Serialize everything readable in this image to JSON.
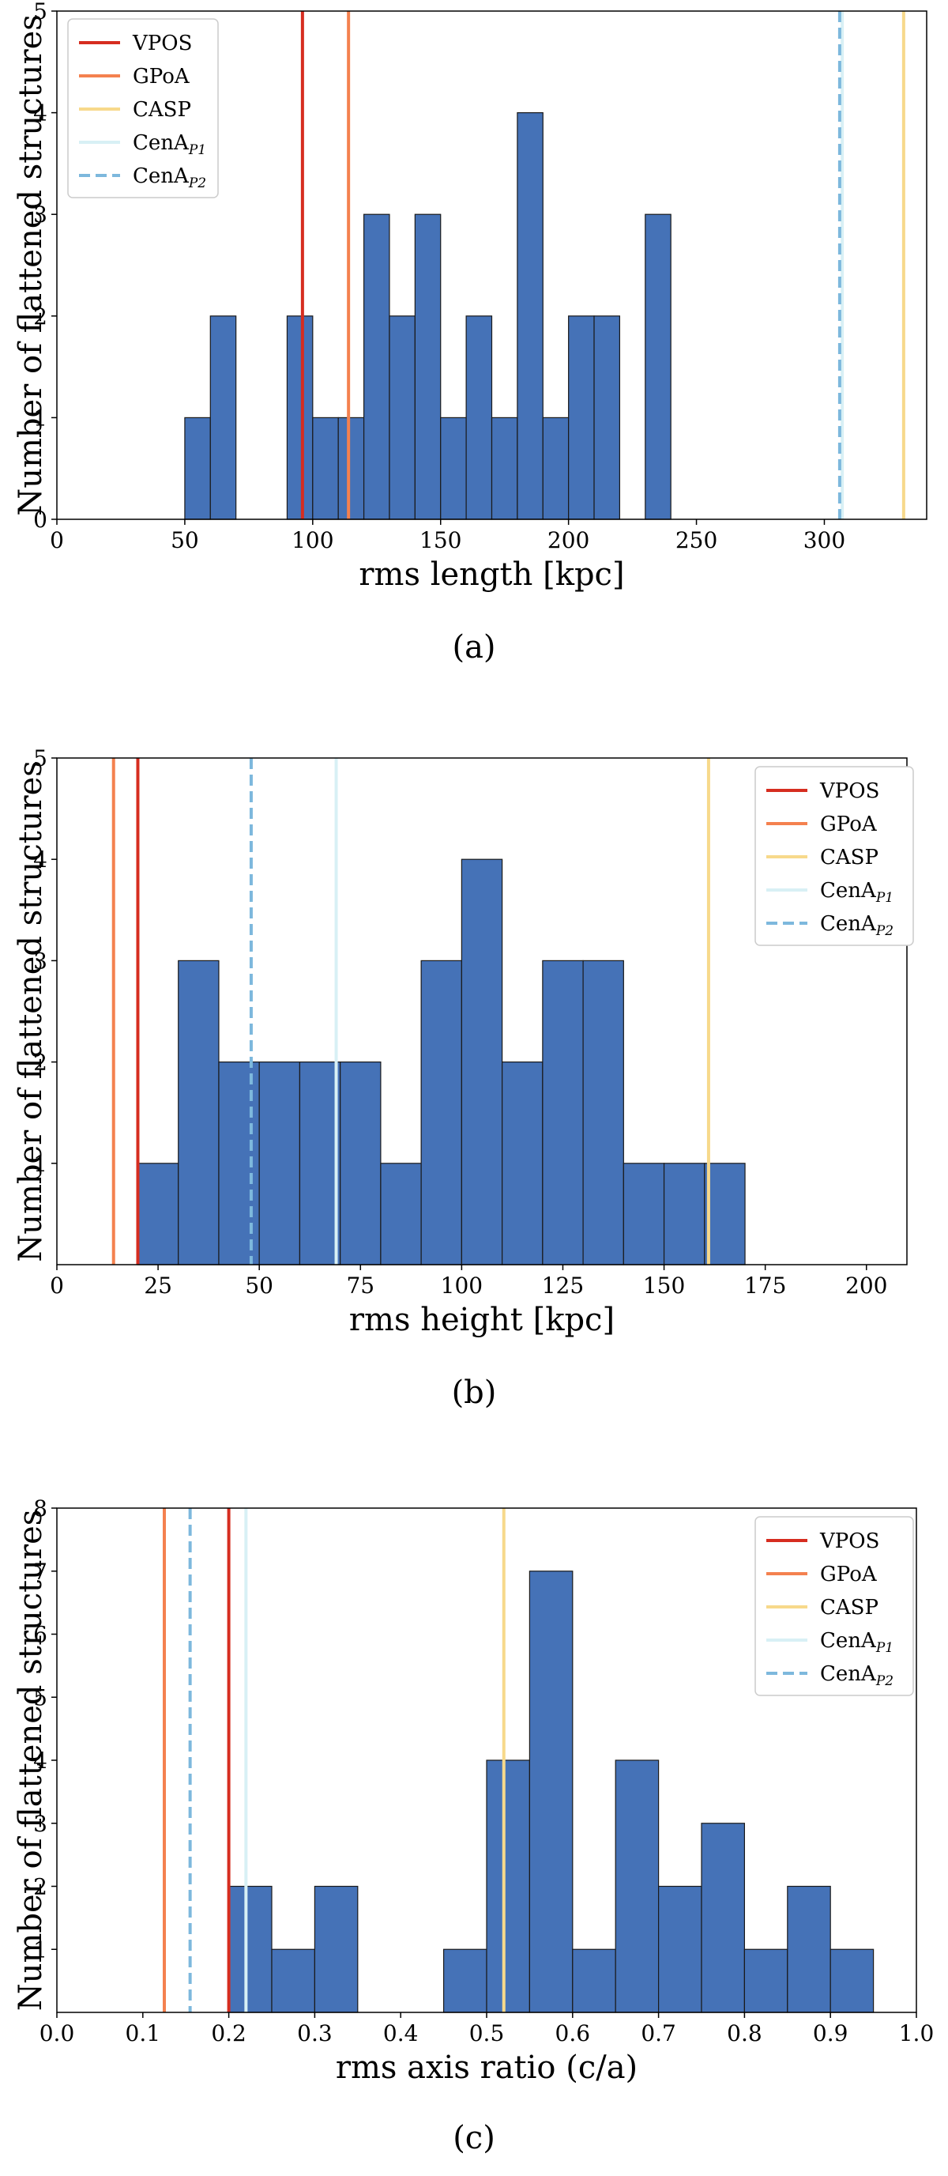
{
  "chart_data": [
    {
      "type": "bar",
      "caption": "(a)",
      "xlabel": "rms length [kpc]",
      "ylabel": "Number of flattened structures",
      "xlim": [
        0,
        340
      ],
      "ylim": [
        0,
        5
      ],
      "xticks": [
        0,
        50,
        100,
        150,
        200,
        250,
        300
      ],
      "yticks": [
        0,
        1,
        2,
        3,
        4,
        5
      ],
      "bin_width": 10,
      "bins": [
        {
          "x0": 50,
          "x1": 60,
          "count": 1
        },
        {
          "x0": 60,
          "x1": 70,
          "count": 2
        },
        {
          "x0": 90,
          "x1": 100,
          "count": 2
        },
        {
          "x0": 100,
          "x1": 110,
          "count": 1
        },
        {
          "x0": 110,
          "x1": 120,
          "count": 1
        },
        {
          "x0": 120,
          "x1": 130,
          "count": 3
        },
        {
          "x0": 130,
          "x1": 140,
          "count": 2
        },
        {
          "x0": 140,
          "x1": 150,
          "count": 3
        },
        {
          "x0": 150,
          "x1": 160,
          "count": 1
        },
        {
          "x0": 160,
          "x1": 170,
          "count": 2
        },
        {
          "x0": 170,
          "x1": 180,
          "count": 1
        },
        {
          "x0": 180,
          "x1": 190,
          "count": 4
        },
        {
          "x0": 190,
          "x1": 200,
          "count": 1
        },
        {
          "x0": 200,
          "x1": 210,
          "count": 2
        },
        {
          "x0": 210,
          "x1": 220,
          "count": 2
        },
        {
          "x0": 230,
          "x1": 240,
          "count": 3
        }
      ],
      "vlines": [
        {
          "name": "VPOS",
          "x": 96,
          "color": "#d62d20",
          "dash": false
        },
        {
          "name": "GPoA",
          "x": 114,
          "color": "#f4814f",
          "dash": false
        },
        {
          "name": "CASP",
          "x": 331,
          "color": "#f7d98b",
          "dash": false
        },
        {
          "name": "CenA",
          "sub": "P1",
          "x": 307,
          "color": "#d8f0f5",
          "dash": false
        },
        {
          "name": "CenA",
          "sub": "P2",
          "x": 306,
          "color": "#7db8dd",
          "dash": true
        }
      ],
      "legend_position": "top-left",
      "bar_color": "#4572b7"
    },
    {
      "type": "bar",
      "caption": "(b)",
      "xlabel": "rms height [kpc]",
      "ylabel": "Number of flattened structures",
      "xlim": [
        0,
        210
      ],
      "ylim": [
        0,
        5
      ],
      "xticks": [
        0,
        25,
        50,
        75,
        100,
        125,
        150,
        175,
        200
      ],
      "yticks": [
        1,
        2,
        3,
        4,
        5
      ],
      "bin_width": 10,
      "bins": [
        {
          "x0": 20,
          "x1": 30,
          "count": 1
        },
        {
          "x0": 30,
          "x1": 40,
          "count": 3
        },
        {
          "x0": 40,
          "x1": 50,
          "count": 2
        },
        {
          "x0": 50,
          "x1": 60,
          "count": 2
        },
        {
          "x0": 60,
          "x1": 70,
          "count": 2
        },
        {
          "x0": 70,
          "x1": 80,
          "count": 2
        },
        {
          "x0": 80,
          "x1": 90,
          "count": 1
        },
        {
          "x0": 90,
          "x1": 100,
          "count": 3
        },
        {
          "x0": 100,
          "x1": 110,
          "count": 4
        },
        {
          "x0": 110,
          "x1": 120,
          "count": 2
        },
        {
          "x0": 120,
          "x1": 130,
          "count": 3
        },
        {
          "x0": 130,
          "x1": 140,
          "count": 3
        },
        {
          "x0": 140,
          "x1": 150,
          "count": 1
        },
        {
          "x0": 150,
          "x1": 160,
          "count": 1
        },
        {
          "x0": 160,
          "x1": 170,
          "count": 1
        }
      ],
      "vlines": [
        {
          "name": "VPOS",
          "x": 20,
          "color": "#d62d20",
          "dash": false
        },
        {
          "name": "GPoA",
          "x": 14,
          "color": "#f4814f",
          "dash": false
        },
        {
          "name": "CASP",
          "x": 161,
          "color": "#f7d98b",
          "dash": false
        },
        {
          "name": "CenA",
          "sub": "P1",
          "x": 69,
          "color": "#d8f0f5",
          "dash": false
        },
        {
          "name": "CenA",
          "sub": "P2",
          "x": 48,
          "color": "#7db8dd",
          "dash": true
        }
      ],
      "legend_position": "top-right",
      "bar_color": "#4572b7"
    },
    {
      "type": "bar",
      "caption": "(c)",
      "xlabel": "rms axis ratio (c/a)",
      "ylabel": "Number of flattened structures",
      "xlim": [
        0,
        1.0
      ],
      "ylim": [
        0,
        8
      ],
      "xticks": [
        0.0,
        0.1,
        0.2,
        0.3,
        0.4,
        0.5,
        0.6,
        0.7,
        0.8,
        0.9,
        1.0
      ],
      "xtick_labels": [
        "0.0",
        "0.1",
        "0.2",
        "0.3",
        "0.4",
        "0.5",
        "0.6",
        "0.7",
        "0.8",
        "0.9",
        "1.0"
      ],
      "yticks": [
        1,
        2,
        3,
        4,
        5,
        6,
        7,
        8
      ],
      "bin_width": 0.05,
      "bins": [
        {
          "x0": 0.2,
          "x1": 0.25,
          "count": 2
        },
        {
          "x0": 0.25,
          "x1": 0.3,
          "count": 1
        },
        {
          "x0": 0.3,
          "x1": 0.35,
          "count": 2
        },
        {
          "x0": 0.45,
          "x1": 0.5,
          "count": 1
        },
        {
          "x0": 0.5,
          "x1": 0.55,
          "count": 4
        },
        {
          "x0": 0.55,
          "x1": 0.6,
          "count": 7
        },
        {
          "x0": 0.6,
          "x1": 0.65,
          "count": 1
        },
        {
          "x0": 0.65,
          "x1": 0.7,
          "count": 4
        },
        {
          "x0": 0.7,
          "x1": 0.75,
          "count": 2
        },
        {
          "x0": 0.75,
          "x1": 0.8,
          "count": 3
        },
        {
          "x0": 0.8,
          "x1": 0.85,
          "count": 1
        },
        {
          "x0": 0.85,
          "x1": 0.9,
          "count": 2
        },
        {
          "x0": 0.9,
          "x1": 0.95,
          "count": 1
        }
      ],
      "vlines": [
        {
          "name": "VPOS",
          "x": 0.2,
          "color": "#d62d20",
          "dash": false
        },
        {
          "name": "GPoA",
          "x": 0.125,
          "color": "#f4814f",
          "dash": false
        },
        {
          "name": "CASP",
          "x": 0.52,
          "color": "#f7d98b",
          "dash": false
        },
        {
          "name": "CenA",
          "sub": "P1",
          "x": 0.22,
          "color": "#d8f0f5",
          "dash": false
        },
        {
          "name": "CenA",
          "sub": "P2",
          "x": 0.155,
          "color": "#7db8dd",
          "dash": true
        }
      ],
      "legend_position": "top-right",
      "bar_color": "#4572b7"
    }
  ]
}
